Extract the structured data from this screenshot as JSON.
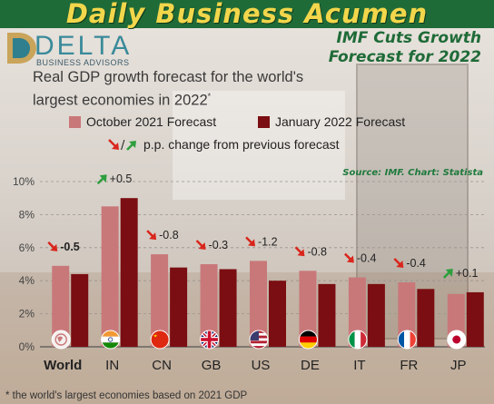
{
  "header": {
    "banner": "Daily Business Acumen",
    "logo_word": "DELTA",
    "logo_sub": "BUSINESS ADVISORS",
    "headline_line1": "IMF Cuts Growth",
    "headline_line2": "Forecast for 2022"
  },
  "footnote": "* the world's largest economies based on 2021 GDP",
  "chart_data": {
    "type": "bar",
    "title_line1": "Real GDP growth forecast for the world's",
    "title_line2": "largest economies in 2022",
    "title_marker": "*",
    "legend_change_text": "p.p. change from previous forecast",
    "legend_change_sep": "/",
    "source": "Source: IMF. Chart: Statista",
    "categories": [
      "World",
      "IN",
      "CN",
      "GB",
      "US",
      "DE",
      "IT",
      "FR",
      "JP"
    ],
    "series": [
      {
        "name": "October 2021 Forecast",
        "color": "#c9787a",
        "values": [
          4.9,
          8.5,
          5.6,
          5.0,
          5.2,
          4.6,
          4.2,
          3.9,
          3.2
        ]
      },
      {
        "name": "January 2022 Forecast",
        "color": "#7b0e12",
        "values": [
          4.4,
          9.0,
          4.8,
          4.7,
          4.0,
          3.8,
          3.8,
          3.5,
          3.3
        ]
      }
    ],
    "changes": [
      "-0.5",
      "+0.5",
      "-0.8",
      "-0.3",
      "-1.2",
      "-0.8",
      "-0.4",
      "-0.4",
      "+0.1"
    ],
    "change_direction": [
      "down",
      "up",
      "down",
      "down",
      "down",
      "down",
      "down",
      "down",
      "up"
    ],
    "arrow_colors": {
      "down": "#d9261c",
      "up": "#2e9e3e"
    },
    "ylim": [
      0,
      10
    ],
    "yticks": [
      "0%",
      "2%",
      "4%",
      "6%",
      "8%",
      "10%"
    ],
    "flag_icons": [
      "globe-icon",
      "india-flag-icon",
      "china-flag-icon",
      "uk-flag-icon",
      "us-flag-icon",
      "germany-flag-icon",
      "italy-flag-icon",
      "france-flag-icon",
      "japan-flag-icon"
    ],
    "grid": true
  }
}
